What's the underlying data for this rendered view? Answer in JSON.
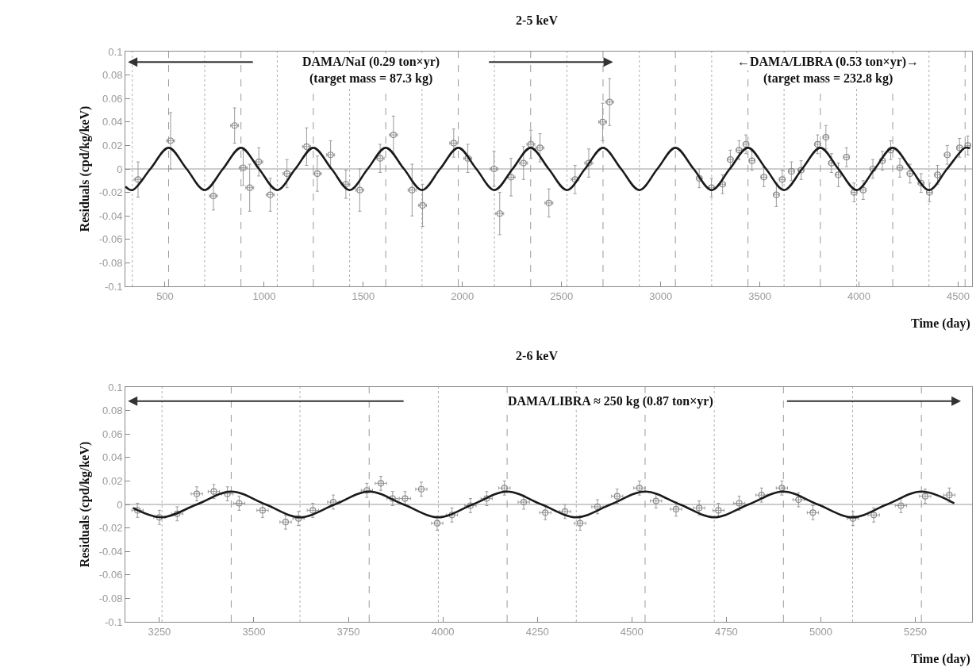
{
  "chart_data": [
    {
      "type": "scatter",
      "title": "2-5 keV",
      "xlabel": "Time (day)",
      "ylabel": "Residuals (cpd/kg/keV)",
      "annotations": [
        "DAMA/NaI (0.29 ton×yr)",
        "(target mass = 87.3 kg)",
        "←DAMA/LIBRA (0.53 ton×yr)→",
        "(target mass = 232.8 kg)"
      ],
      "xlim": [
        300,
        4570
      ],
      "xticks": [
        500,
        1000,
        1500,
        2000,
        2500,
        3000,
        3500,
        4000,
        4500
      ],
      "ylim": [
        -0.1,
        0.1
      ],
      "yticks": [
        -0.1,
        -0.08,
        -0.06,
        -0.04,
        -0.02,
        0,
        0.02,
        0.04,
        0.06,
        0.08,
        0.1
      ],
      "grid": false,
      "series": [
        {
          "marker": "circle",
          "color": "#8a8a8a",
          "x": [
            364,
            528,
            744,
            851,
            894,
            927,
            973,
            1031,
            1115,
            1214,
            1268,
            1335,
            1412,
            1482,
            1585,
            1652,
            1746,
            1799,
            1956,
            2027,
            2159,
            2188,
            2245,
            2308,
            2345,
            2391,
            2436,
            2568,
            2637,
            2707,
            2742,
            3194,
            3256,
            3312,
            3351,
            3395,
            3430,
            3460,
            3520,
            3583,
            3613,
            3659,
            3708,
            3791,
            3833,
            3861,
            3896,
            3937,
            3975,
            4021,
            4070,
            4118,
            4160,
            4206,
            4257,
            4313,
            4355,
            4396,
            4445,
            4507,
            4549
          ],
          "values": [
            -0.009,
            0.024,
            -0.023,
            0.037,
            0.001,
            -0.016,
            0.006,
            -0.022,
            -0.004,
            0.019,
            -0.004,
            0.012,
            -0.013,
            -0.018,
            0.009,
            0.029,
            -0.018,
            -0.031,
            0.022,
            0.009,
            0,
            -0.038,
            -0.007,
            0.005,
            0.021,
            0.018,
            -0.029,
            -0.009,
            0.005,
            0.04,
            0.057,
            -0.008,
            -0.016,
            -0.013,
            0.008,
            0.016,
            0.021,
            0.007,
            -0.007,
            -0.022,
            -0.009,
            -0.002,
            -0.001,
            0.021,
            0.027,
            0.005,
            -0.005,
            0.01,
            -0.02,
            -0.018,
            0,
            0.007,
            0.016,
            0.001,
            -0.004,
            -0.012,
            -0.02,
            -0.005,
            0.012,
            0.018,
            0.02
          ],
          "errors": [
            0.015,
            0.024,
            0.012,
            0.015,
            0.015,
            0.02,
            0.012,
            0.014,
            0.012,
            0.016,
            0.015,
            0.012,
            0.012,
            0.018,
            0.012,
            0.016,
            0.022,
            0.018,
            0.012,
            0.012,
            0.015,
            0.018,
            0.016,
            0.014,
            0.012,
            0.012,
            0.012,
            0.012,
            0.012,
            0.016,
            0.02,
            0.008,
            0.008,
            0.008,
            0.008,
            0.008,
            0.008,
            0.008,
            0.008,
            0.01,
            0.008,
            0.008,
            0.008,
            0.008,
            0.01,
            0.008,
            0.01,
            0.008,
            0.008,
            0.008,
            0.008,
            0.008,
            0.008,
            0.008,
            0.008,
            0.008,
            0.008,
            0.008,
            0.008,
            0.008,
            0.008
          ],
          "xerrors": [
            20,
            20,
            20,
            20,
            20,
            20,
            20,
            20,
            20,
            20,
            20,
            20,
            20,
            20,
            20,
            20,
            20,
            20,
            20,
            20,
            20,
            20,
            20,
            20,
            20,
            20,
            20,
            20,
            20,
            20,
            20,
            15,
            15,
            15,
            15,
            15,
            15,
            15,
            15,
            15,
            15,
            15,
            15,
            15,
            15,
            15,
            15,
            15,
            15,
            15,
            15,
            15,
            15,
            15,
            15,
            15,
            15,
            15,
            15,
            15,
            15
          ]
        },
        {
          "type": "line",
          "marker": "none",
          "color": "#1a1a1a",
          "x": [
            300,
            335,
            426,
            518,
            609,
            700,
            792,
            883,
            974,
            1066,
            1157,
            1248,
            1340,
            1431,
            1522,
            1613,
            1705,
            1796,
            1887,
            1979,
            2070,
            2161,
            2253,
            2344,
            2435,
            2527,
            2618,
            2709,
            2800,
            2892,
            2983,
            3074,
            3166,
            3257,
            3348,
            3440,
            3531,
            3622,
            3713,
            3805,
            3896,
            3988,
            4079,
            4170,
            4262,
            4353,
            4444,
            4535,
            4560
          ],
          "values": [
            -0.015,
            -0.018,
            0,
            0.018,
            0,
            -0.018,
            0,
            0.018,
            0,
            -0.018,
            0,
            0.018,
            0,
            -0.018,
            0,
            0.018,
            0,
            -0.018,
            0,
            0.018,
            0,
            -0.018,
            0,
            0.018,
            0,
            -0.018,
            0,
            0.018,
            0,
            -0.018,
            0,
            0.018,
            0,
            -0.018,
            0,
            0.018,
            0,
            -0.018,
            0,
            0.018,
            0,
            -0.018,
            0,
            0.018,
            0,
            -0.018,
            0,
            0.018,
            0.0175
          ]
        }
      ],
      "ref_lines": [
        {
          "axis": "y",
          "value": 0,
          "color": "#9a9a9a",
          "line_style": "solid"
        },
        {
          "axis": "x",
          "value": 335,
          "color": "#b0b0b0",
          "line_style": "dotted"
        },
        {
          "axis": "x",
          "value": 700,
          "color": "#b0b0b0",
          "line_style": "dotted"
        },
        {
          "axis": "x",
          "value": 1066,
          "color": "#b0b0b0",
          "line_style": "dotted"
        },
        {
          "axis": "x",
          "value": 1431,
          "color": "#b0b0b0",
          "line_style": "dotted"
        },
        {
          "axis": "x",
          "value": 1796,
          "color": "#b0b0b0",
          "line_style": "dotted"
        },
        {
          "axis": "x",
          "value": 2161,
          "color": "#b0b0b0",
          "line_style": "dotted"
        },
        {
          "axis": "x",
          "value": 2527,
          "color": "#b0b0b0",
          "line_style": "dotted"
        },
        {
          "axis": "x",
          "value": 2892,
          "color": "#b0b0b0",
          "line_style": "dotted"
        },
        {
          "axis": "x",
          "value": 3257,
          "color": "#b0b0b0",
          "line_style": "dotted"
        },
        {
          "axis": "x",
          "value": 3622,
          "color": "#b0b0b0",
          "line_style": "dotted"
        },
        {
          "axis": "x",
          "value": 3988,
          "color": "#b0b0b0",
          "line_style": "dotted"
        },
        {
          "axis": "x",
          "value": 4353,
          "color": "#b0b0b0",
          "line_style": "dotted"
        },
        {
          "axis": "x",
          "value": 518,
          "color": "#9a9a9a",
          "line_style": "dashed"
        },
        {
          "axis": "x",
          "value": 883,
          "color": "#9a9a9a",
          "line_style": "dashed"
        },
        {
          "axis": "x",
          "value": 1248,
          "color": "#9a9a9a",
          "line_style": "dashed"
        },
        {
          "axis": "x",
          "value": 1613,
          "color": "#9a9a9a",
          "line_style": "dashed"
        },
        {
          "axis": "x",
          "value": 1979,
          "color": "#9a9a9a",
          "line_style": "dashed"
        },
        {
          "axis": "x",
          "value": 2344,
          "color": "#9a9a9a",
          "line_style": "dashed"
        },
        {
          "axis": "x",
          "value": 2709,
          "color": "#9a9a9a",
          "line_style": "dashed"
        },
        {
          "axis": "x",
          "value": 3074,
          "color": "#9a9a9a",
          "line_style": "dashed"
        },
        {
          "axis": "x",
          "value": 3440,
          "color": "#9a9a9a",
          "line_style": "dashed"
        },
        {
          "axis": "x",
          "value": 3805,
          "color": "#9a9a9a",
          "line_style": "dashed"
        },
        {
          "axis": "x",
          "value": 4170,
          "color": "#9a9a9a",
          "line_style": "dashed"
        },
        {
          "axis": "x",
          "value": 4535,
          "color": "#9a9a9a",
          "line_style": "dashed"
        }
      ]
    },
    {
      "type": "scatter",
      "title": "2-6 keV",
      "xlabel": "Time (day)",
      "ylabel": "Residuals (cpd/kg/keV)",
      "annotations": [
        "DAMA/LIBRA ≈ 250 kg (0.87 ton×yr)"
      ],
      "xlim": [
        3160,
        5400
      ],
      "xticks": [
        3250,
        3500,
        3750,
        4000,
        4250,
        4500,
        4750,
        5000,
        5250
      ],
      "ylim": [
        -0.1,
        0.1
      ],
      "yticks": [
        -0.1,
        -0.08,
        -0.06,
        -0.04,
        -0.02,
        0,
        0.02,
        0.04,
        0.06,
        0.08,
        0.1
      ],
      "grid": false,
      "series": [
        {
          "marker": "circle",
          "color": "#8a8a8a",
          "x": [
            3192,
            3250,
            3297,
            3349,
            3394,
            3430,
            3461,
            3523,
            3584,
            3618,
            3656,
            3710,
            3799,
            3836,
            3867,
            3900,
            3943,
            3985,
            4024,
            4073,
            4116,
            4163,
            4214,
            4271,
            4323,
            4363,
            4409,
            4461,
            4520,
            4564,
            4617,
            4678,
            4729,
            4784,
            4843,
            4897,
            4941,
            4979,
            5085,
            5140,
            5212,
            5276,
            5340
          ],
          "values": [
            -0.005,
            -0.011,
            -0.008,
            0.009,
            0.011,
            0.009,
            0.001,
            -0.005,
            -0.015,
            -0.012,
            -0.005,
            0.002,
            0.012,
            0.018,
            0.005,
            0.005,
            0.013,
            -0.016,
            -0.009,
            -0.001,
            0.005,
            0.014,
            0.002,
            -0.007,
            -0.006,
            -0.016,
            -0.002,
            0.007,
            0.014,
            0.003,
            -0.004,
            -0.003,
            -0.005,
            0.001,
            0.008,
            0.014,
            0.004,
            -0.007,
            -0.012,
            -0.009,
            -0.001,
            0.007,
            0.008
          ],
          "errors": [
            0.006,
            0.006,
            0.006,
            0.006,
            0.006,
            0.006,
            0.006,
            0.006,
            0.006,
            0.006,
            0.006,
            0.006,
            0.006,
            0.006,
            0.006,
            0.006,
            0.006,
            0.006,
            0.006,
            0.006,
            0.006,
            0.006,
            0.006,
            0.006,
            0.006,
            0.006,
            0.006,
            0.006,
            0.006,
            0.006,
            0.006,
            0.006,
            0.006,
            0.006,
            0.006,
            0.006,
            0.006,
            0.006,
            0.006,
            0.006,
            0.006,
            0.006,
            0.006
          ],
          "xerrors": [
            15,
            15,
            15,
            15,
            15,
            15,
            15,
            15,
            15,
            15,
            15,
            15,
            15,
            15,
            15,
            15,
            15,
            15,
            15,
            15,
            15,
            15,
            15,
            15,
            15,
            15,
            15,
            15,
            15,
            15,
            15,
            15,
            15,
            15,
            15,
            15,
            15,
            15,
            15,
            15,
            15,
            15,
            15
          ]
        },
        {
          "type": "line",
          "marker": "none",
          "color": "#1a1a1a",
          "x": [
            3180,
            3257,
            3349,
            3440,
            3531,
            3622,
            3714,
            3805,
            3896,
            3988,
            4079,
            4170,
            4261,
            4353,
            4444,
            4535,
            4627,
            4718,
            4809,
            4901,
            4992,
            5084,
            5175,
            5266,
            5353
          ],
          "values": [
            -0.003,
            -0.011,
            0,
            0.011,
            0,
            -0.011,
            0,
            0.011,
            0,
            -0.011,
            0,
            0.011,
            0,
            -0.011,
            0,
            0.011,
            0,
            -0.011,
            0,
            0.011,
            0,
            -0.011,
            0,
            0.011,
            0.001
          ]
        }
      ],
      "ref_lines": [
        {
          "axis": "y",
          "value": 0,
          "color": "#9a9a9a",
          "line_style": "solid"
        },
        {
          "axis": "x",
          "value": 3257,
          "color": "#b0b0b0",
          "line_style": "dotted"
        },
        {
          "axis": "x",
          "value": 3622,
          "color": "#b0b0b0",
          "line_style": "dotted"
        },
        {
          "axis": "x",
          "value": 3988,
          "color": "#b0b0b0",
          "line_style": "dotted"
        },
        {
          "axis": "x",
          "value": 4353,
          "color": "#b0b0b0",
          "line_style": "dotted"
        },
        {
          "axis": "x",
          "value": 4718,
          "color": "#b0b0b0",
          "line_style": "dotted"
        },
        {
          "axis": "x",
          "value": 5084,
          "color": "#b0b0b0",
          "line_style": "dotted"
        },
        {
          "axis": "x",
          "value": 3440,
          "color": "#9a9a9a",
          "line_style": "dashed"
        },
        {
          "axis": "x",
          "value": 3805,
          "color": "#9a9a9a",
          "line_style": "dashed"
        },
        {
          "axis": "x",
          "value": 4170,
          "color": "#9a9a9a",
          "line_style": "dashed"
        },
        {
          "axis": "x",
          "value": 4535,
          "color": "#9a9a9a",
          "line_style": "dashed"
        },
        {
          "axis": "x",
          "value": 4901,
          "color": "#9a9a9a",
          "line_style": "dashed"
        },
        {
          "axis": "x",
          "value": 5266,
          "color": "#9a9a9a",
          "line_style": "dashed"
        }
      ]
    }
  ]
}
